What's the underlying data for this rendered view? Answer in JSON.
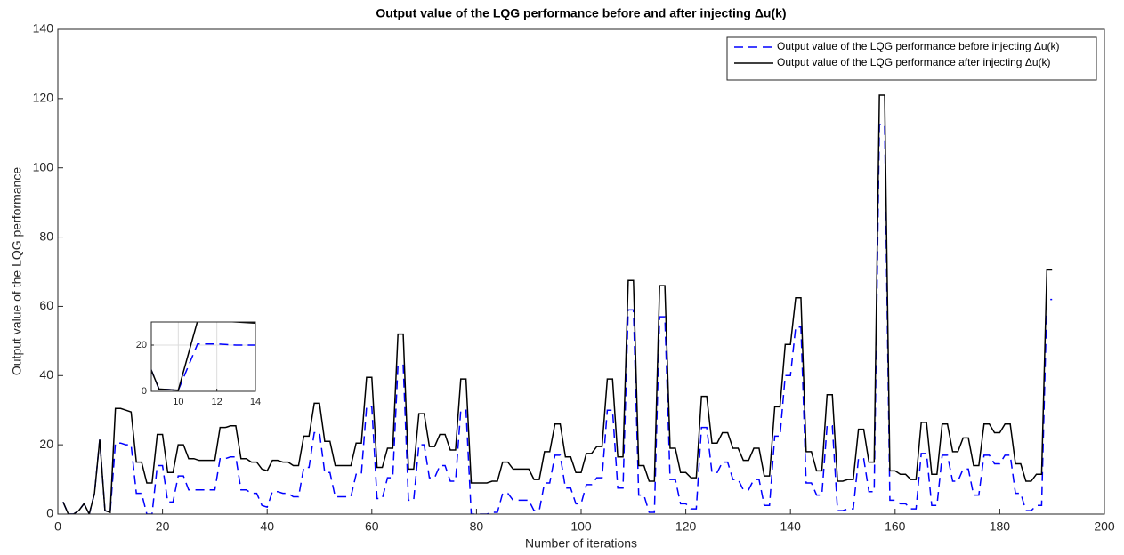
{
  "chart_data": [
    {
      "type": "line",
      "title": "Output value of the LQG performance before and after injecting Δu(k)",
      "xlabel": "Number of iterations",
      "ylabel": "Output value of the LQG performance",
      "xlim": [
        0,
        200
      ],
      "ylim": [
        0,
        140
      ],
      "xticks": [
        0,
        20,
        40,
        60,
        80,
        100,
        120,
        140,
        160,
        180,
        200
      ],
      "yticks": [
        0,
        20,
        40,
        60,
        80,
        100,
        120,
        140
      ],
      "grid": false,
      "legend": "upper right",
      "x": [
        1,
        2,
        3,
        4,
        5,
        6,
        7,
        8,
        9,
        10,
        11,
        12,
        13,
        14,
        15,
        16,
        17,
        18,
        19,
        20,
        21,
        22,
        23,
        24,
        25,
        26,
        27,
        28,
        29,
        30,
        31,
        32,
        33,
        34,
        35,
        36,
        37,
        38,
        39,
        40,
        41,
        42,
        43,
        44,
        45,
        46,
        47,
        48,
        49,
        50,
        51,
        52,
        53,
        54,
        55,
        56,
        57,
        58,
        59,
        60,
        61,
        62,
        63,
        64,
        65,
        66,
        67,
        68,
        69,
        70,
        71,
        72,
        73,
        74,
        75,
        76,
        77,
        78,
        79,
        80,
        81,
        82,
        83,
        84,
        85,
        86,
        87,
        88,
        89,
        90,
        91,
        92,
        93,
        94,
        95,
        96,
        97,
        98,
        99,
        100,
        101,
        102,
        103,
        104,
        105,
        106,
        107,
        108,
        109,
        110,
        111,
        112,
        113,
        114,
        115,
        116,
        117,
        118,
        119,
        120,
        121,
        122,
        123,
        124,
        125,
        126,
        127,
        128,
        129,
        130,
        131,
        132,
        133,
        134,
        135,
        136,
        137,
        138,
        139,
        140,
        141,
        142,
        143,
        144,
        145,
        146,
        147,
        148,
        149,
        150,
        151,
        152,
        153,
        154,
        155,
        156,
        157,
        158,
        159,
        160,
        161,
        162,
        163,
        164,
        165,
        166,
        167,
        168,
        169,
        170,
        171,
        172,
        173,
        174,
        175,
        176,
        177,
        178,
        179,
        180,
        181,
        182,
        183,
        184,
        185,
        186,
        187,
        188,
        189,
        190
      ],
      "series": [
        {
          "name": "Output value of the LQG performance before injecting Δu(k)",
          "color": "#0000ff",
          "dash": true,
          "values": [
            3.5,
            0,
            0,
            1,
            3,
            0,
            6,
            21.5,
            1,
            0.5,
            20.5,
            20.5,
            20,
            20,
            6,
            6,
            0,
            0,
            14,
            14,
            3.5,
            3.5,
            11,
            11,
            7,
            7,
            7,
            7,
            7,
            7,
            16,
            16,
            16.5,
            16.5,
            7,
            7,
            6,
            6,
            2.5,
            2,
            6.5,
            6.5,
            6,
            6,
            5,
            5,
            13.5,
            13.5,
            23.5,
            23.5,
            12,
            12,
            5,
            5,
            5,
            5,
            11.5,
            11.5,
            31,
            31,
            4.5,
            4.5,
            10.5,
            10.5,
            43,
            43,
            4,
            4,
            20,
            20,
            10.5,
            10.5,
            14,
            14,
            9.5,
            9.5,
            30,
            30,
            0,
            0,
            0,
            0,
            0.5,
            0.5,
            6,
            6,
            4,
            4,
            4,
            4,
            1,
            1,
            9,
            9,
            17,
            17,
            7.5,
            7.5,
            3,
            3,
            8.5,
            8.5,
            10.5,
            10.5,
            30,
            30,
            7.5,
            7.5,
            59,
            59,
            5.5,
            5.5,
            0.5,
            0.5,
            57,
            57,
            10,
            10,
            3,
            3,
            1.5,
            1.5,
            25,
            25,
            12,
            12,
            15,
            15,
            10,
            10,
            7,
            7,
            10,
            10,
            2.5,
            2.5,
            22.5,
            22.5,
            40,
            40,
            54,
            54,
            9,
            9,
            5.5,
            5.5,
            25.5,
            25.5,
            1,
            1,
            1.5,
            1.5,
            16,
            16,
            6.5,
            6.5,
            112.5,
            112.5,
            4,
            4,
            3,
            3,
            1.5,
            1.5,
            17.5,
            17.5,
            2.5,
            2.5,
            17,
            17,
            9.5,
            9.5,
            13,
            13,
            5.5,
            5.5,
            17,
            17,
            14.5,
            14.5,
            17,
            17,
            6,
            6,
            1,
            1,
            2.5,
            2.5,
            62,
            62
          ]
        },
        {
          "name": "Output value of the LQG performance after injecting Δu(k)",
          "color": "#000000",
          "dash": false,
          "values": [
            3.5,
            0,
            0,
            1,
            3,
            0,
            6,
            21.5,
            1,
            0.5,
            30.5,
            30.5,
            30,
            29.5,
            15,
            15,
            9,
            9,
            23,
            23,
            12,
            12,
            20,
            20,
            16,
            16,
            15.5,
            15.5,
            15.5,
            15.5,
            25,
            25,
            25.5,
            25.5,
            16,
            16,
            15,
            15,
            13,
            12.5,
            15.5,
            15.5,
            15,
            15,
            14,
            14,
            22.5,
            22.5,
            32,
            32,
            21,
            21,
            14,
            14,
            14,
            14,
            20.5,
            20.5,
            39.5,
            39.5,
            13.5,
            13.5,
            19,
            19,
            52,
            52,
            13,
            13,
            29,
            29,
            19.5,
            19.5,
            23,
            23,
            18.5,
            18.5,
            39,
            39,
            9,
            9,
            9,
            9,
            9.5,
            9.5,
            15,
            15,
            13,
            13,
            13,
            13,
            10,
            10,
            18,
            18,
            26,
            26,
            16.5,
            16.5,
            12,
            12,
            17.5,
            17.5,
            19.5,
            19.5,
            39,
            39,
            16.5,
            16.5,
            67.5,
            67.5,
            14,
            14,
            9.5,
            9.5,
            66,
            66,
            19,
            19,
            12,
            12,
            10.5,
            10.5,
            34,
            34,
            20.5,
            20.5,
            23.5,
            23.5,
            19,
            19,
            15.5,
            15.5,
            19,
            19,
            11,
            11,
            31,
            31,
            49,
            49,
            62.5,
            62.5,
            18,
            18,
            12.5,
            12.5,
            34.5,
            34.5,
            9.5,
            9.5,
            10,
            10,
            24.5,
            24.5,
            15,
            15,
            121,
            121,
            12.5,
            12.5,
            11.5,
            11.5,
            10,
            10,
            26.5,
            26.5,
            11.5,
            11.5,
            26,
            26,
            18,
            18,
            22,
            22,
            14,
            14,
            26,
            26,
            23.5,
            23.5,
            26,
            26,
            14.5,
            14.5,
            9.5,
            9.5,
            11.5,
            11.5,
            70.5,
            70.5
          ]
        }
      ]
    },
    {
      "type": "inset",
      "xlim": [
        8.6,
        14
      ],
      "ylim": [
        0,
        30
      ],
      "xticks": [
        10,
        12,
        14
      ],
      "yticks": [
        0,
        20
      ],
      "grid": true
    }
  ]
}
